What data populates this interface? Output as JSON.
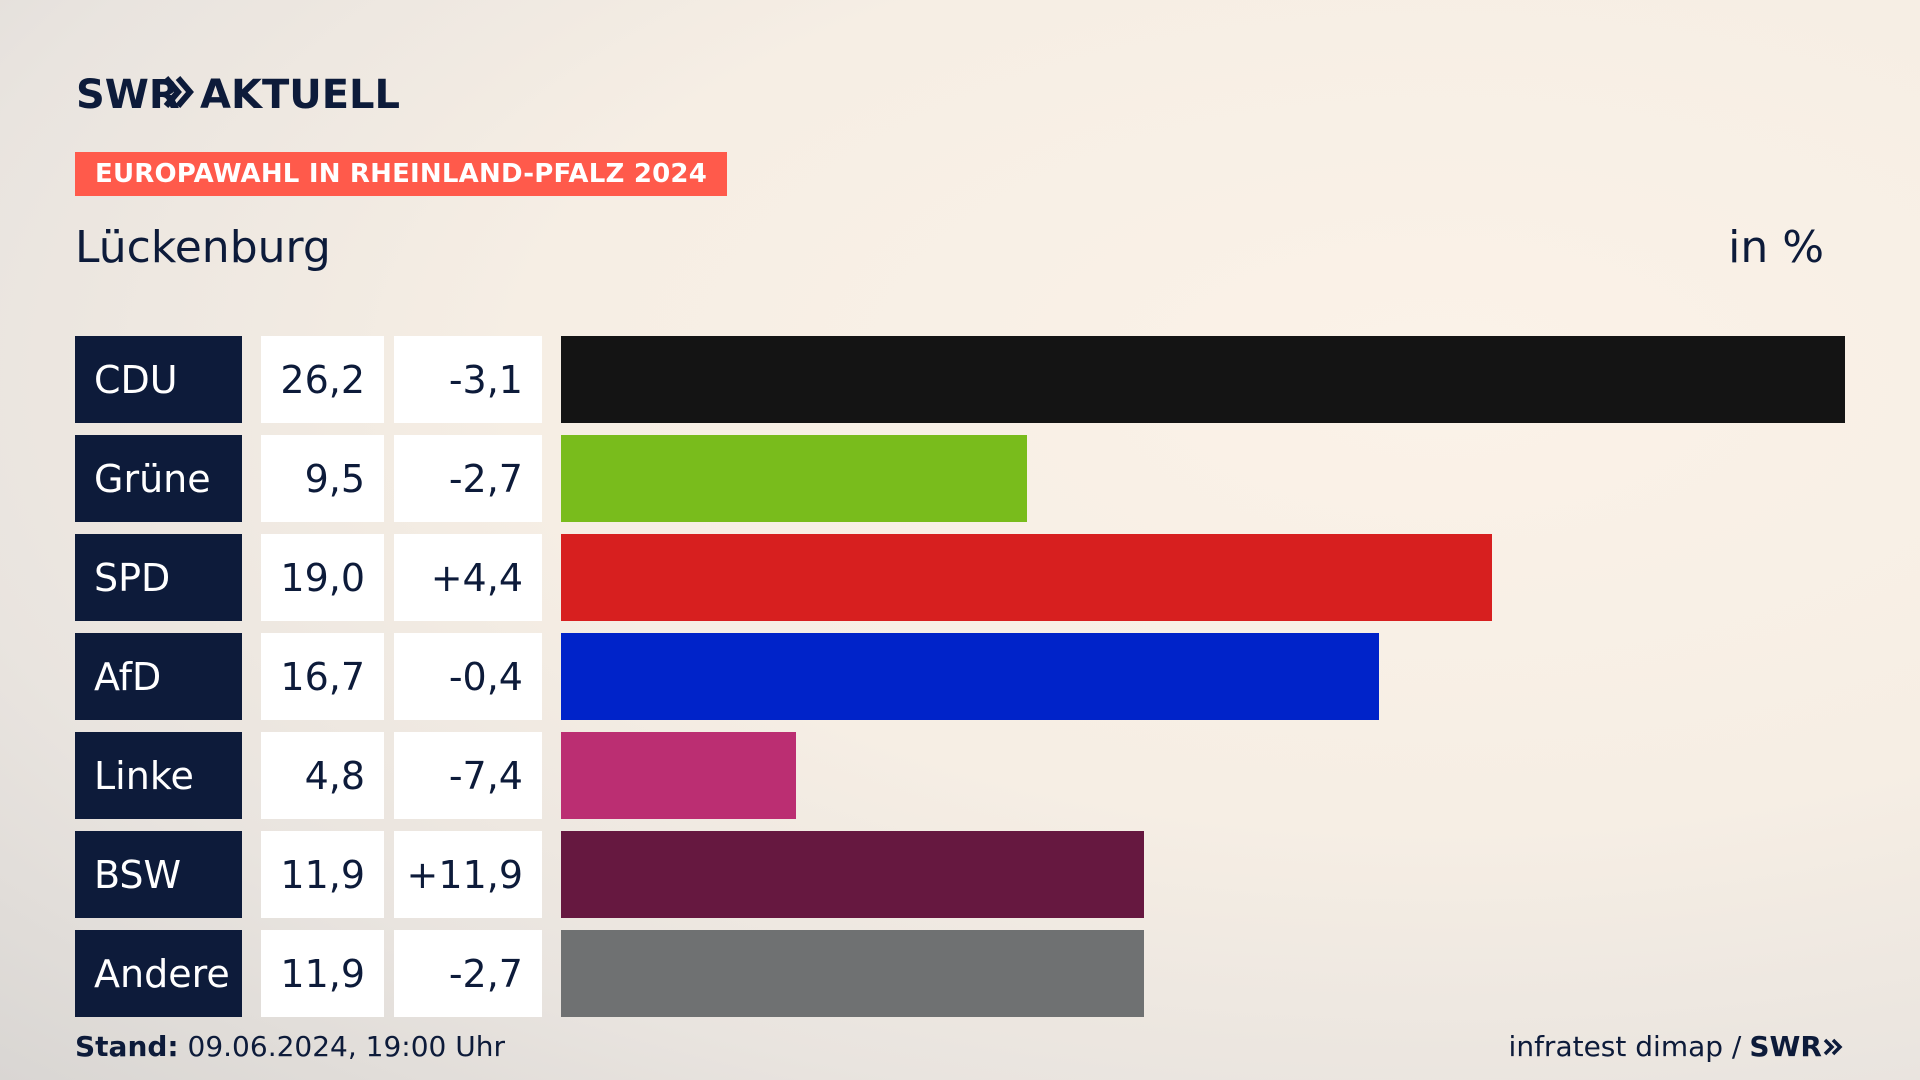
{
  "header": {
    "logo_text": "SWR AKTUELL",
    "tag": "EUROPAWAHL IN RHEINLAND-PFALZ 2024",
    "subtitle": "Lückenburg",
    "unit": "in %"
  },
  "chart_data": {
    "type": "bar",
    "orientation": "horizontal",
    "title": "Lückenburg",
    "unit": "in %",
    "categories": [
      "CDU",
      "Grüne",
      "SPD",
      "AfD",
      "Linke",
      "BSW",
      "Andere"
    ],
    "values": [
      26.2,
      9.5,
      19.0,
      16.7,
      4.8,
      11.9,
      11.9
    ],
    "value_labels": [
      "26,2",
      "9,5",
      "19,0",
      "16,7",
      "4,8",
      "11,9",
      "11,9"
    ],
    "diff_labels": [
      "-3,1",
      "-2,7",
      "+4,4",
      "-0,4",
      "-7,4",
      "+11,9",
      "-2,7"
    ],
    "colors": [
      "#141414",
      "#79bc1c",
      "#d71f1f",
      "#0023c9",
      "#bb2e72",
      "#661840",
      "#6f7172"
    ],
    "xlim": [
      0,
      26.2
    ]
  },
  "footer": {
    "stand_label": "Stand:",
    "stand_value": "09.06.2024, 19:00 Uhr",
    "source": "infratest dimap /",
    "brand": "SWR"
  }
}
